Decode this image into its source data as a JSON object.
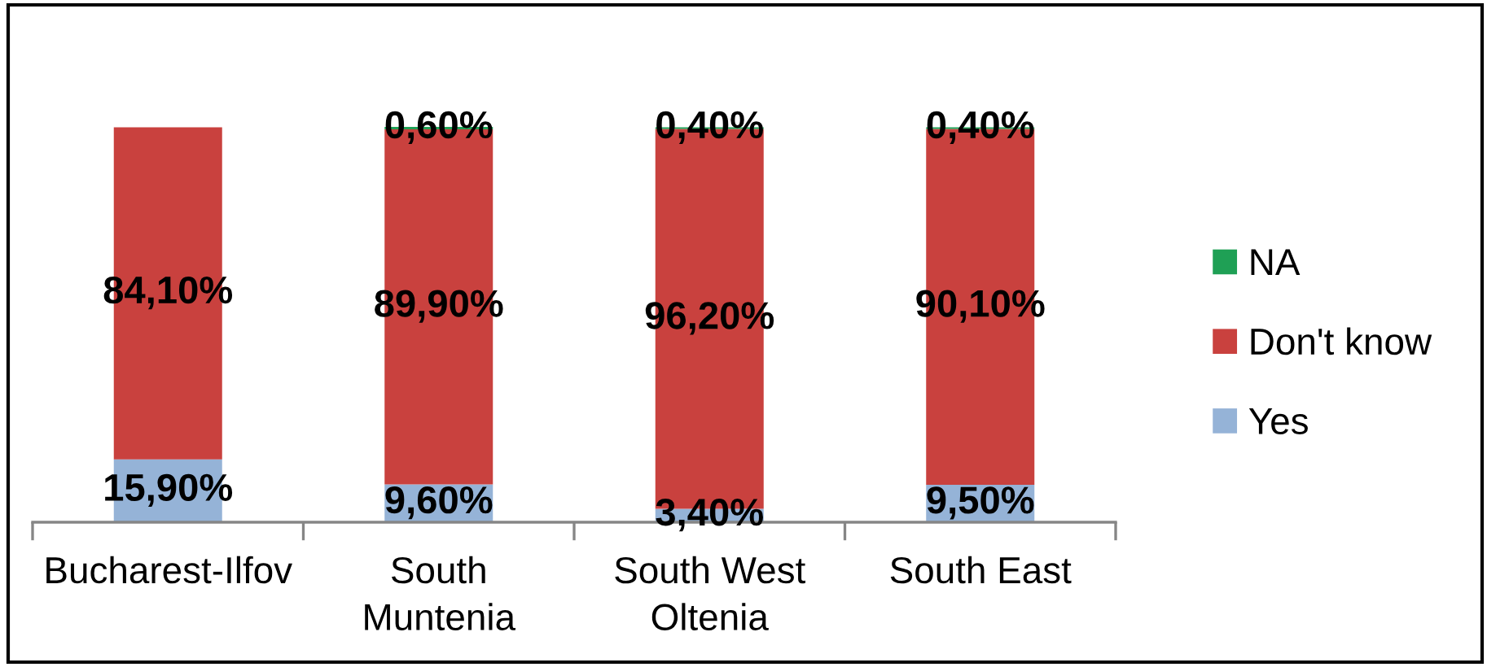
{
  "chart_data": {
    "type": "bar",
    "stacked": true,
    "categories": [
      "Bucharest-Ilfov",
      "South\nMuntenia",
      "South West\nOltenia",
      "South East"
    ],
    "series": [
      {
        "name": "Yes",
        "color": "#95b3d7",
        "values": [
          15.9,
          9.6,
          3.4,
          9.5
        ],
        "value_labels": [
          "15,90%",
          "9,60%",
          "3,40%",
          "9,50%"
        ]
      },
      {
        "name": "Don't know",
        "color": "#c9413e",
        "values": [
          84.1,
          89.9,
          96.2,
          90.1
        ],
        "value_labels": [
          "84,10%",
          "89,90%",
          "96,20%",
          "90,10%"
        ]
      },
      {
        "name": "NA",
        "color": "#1fa055",
        "values": [
          null,
          0.6,
          0.4,
          0.4
        ],
        "value_labels": [
          null,
          "0,60%",
          "0,40%",
          "0,40%"
        ]
      }
    ],
    "legend": "right"
  }
}
